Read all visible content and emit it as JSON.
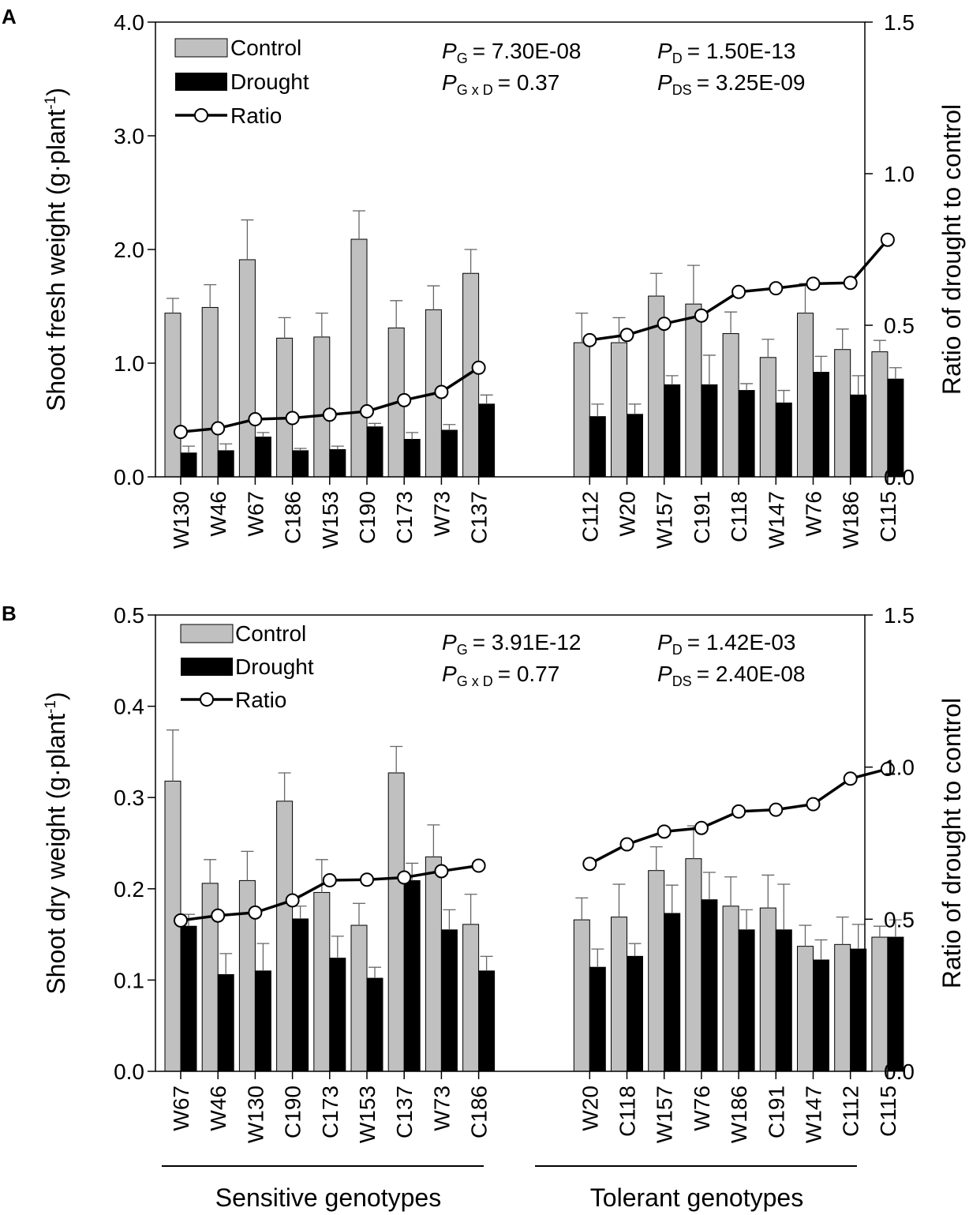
{
  "colors": {
    "control": "#c0c0c0",
    "drought": "#000000",
    "ratio_line": "#000000",
    "ratio_marker": "#ffffff",
    "error_bar": "#666666"
  },
  "group_labels": {
    "sensitive": "Sensitive genotypes",
    "tolerant": "Tolerant genotypes"
  },
  "chart_data": [
    {
      "panel_label": "A",
      "type": "bar",
      "ylabel_main": "Shoot fresh weight (g·plant",
      "ylabel_sup": "-1",
      "ylabel_close": ")",
      "y2label": "Ratio of drought to control",
      "ylim": [
        0,
        4.0
      ],
      "yticks": [
        "0.0",
        "1.0",
        "2.0",
        "3.0",
        "4.0"
      ],
      "y2lim": [
        0,
        1.5
      ],
      "y2ticks": [
        "0.0",
        "0.5",
        "1.0",
        "1.5"
      ],
      "legend": [
        "Control",
        "Drought",
        "Ratio"
      ],
      "stats": {
        "pg_value": "= 7.30E-08",
        "pgd_value": "= 0.37",
        "pd_value": "= 1.50E-13",
        "pds_value": "= 3.25E-09"
      },
      "sensitive_categories": [
        "W130",
        "W46",
        "W67",
        "C186",
        "W153",
        "C190",
        "C173",
        "W73",
        "C137"
      ],
      "tolerant_categories": [
        "C112",
        "W20",
        "W157",
        "C191",
        "C118",
        "W147",
        "W76",
        "W186",
        "C115"
      ],
      "series": [
        {
          "name": "Control",
          "values": [
            1.44,
            1.49,
            1.91,
            1.22,
            1.23,
            2.09,
            1.31,
            1.47,
            1.79,
            1.18,
            1.18,
            1.59,
            1.52,
            1.26,
            1.05,
            1.44,
            1.12,
            1.1
          ],
          "errors": [
            0.13,
            0.2,
            0.35,
            0.18,
            0.21,
            0.25,
            0.24,
            0.21,
            0.21,
            0.26,
            0.22,
            0.2,
            0.34,
            0.19,
            0.16,
            0.26,
            0.18,
            0.1
          ]
        },
        {
          "name": "Drought",
          "values": [
            0.21,
            0.23,
            0.35,
            0.23,
            0.24,
            0.44,
            0.33,
            0.41,
            0.64,
            0.53,
            0.55,
            0.81,
            0.81,
            0.76,
            0.65,
            0.92,
            0.72,
            0.86
          ],
          "errors": [
            0.06,
            0.06,
            0.04,
            0.02,
            0.03,
            0.03,
            0.06,
            0.05,
            0.08,
            0.11,
            0.09,
            0.08,
            0.26,
            0.06,
            0.11,
            0.14,
            0.17,
            0.1
          ]
        },
        {
          "name": "Ratio",
          "values": [
            0.148,
            0.16,
            0.19,
            0.194,
            0.205,
            0.216,
            0.253,
            0.28,
            0.36,
            0.451,
            0.468,
            0.505,
            0.532,
            0.61,
            0.622,
            0.637,
            0.64,
            0.782
          ]
        }
      ]
    },
    {
      "panel_label": "B",
      "type": "bar",
      "ylabel_main": "Shoot dry weight (g·plant",
      "ylabel_sup": "-1",
      "ylabel_close": ")",
      "y2label": "Ratio of drought to control",
      "ylim": [
        0,
        0.5
      ],
      "yticks": [
        "0.0",
        "0.1",
        "0.2",
        "0.3",
        "0.4",
        "0.5"
      ],
      "y2lim": [
        0,
        1.5
      ],
      "y2ticks": [
        "0.0",
        "0.5",
        "1.0",
        "1.5"
      ],
      "legend": [
        "Control",
        "Drought",
        "Ratio"
      ],
      "stats": {
        "pg_value": "= 3.91E-12",
        "pgd_value": "= 0.77",
        "pd_value": "= 1.42E-03",
        "pds_value": "= 2.40E-08"
      },
      "sensitive_categories": [
        "W67",
        "W46",
        "W130",
        "C190",
        "C173",
        "W153",
        "C137",
        "W73",
        "C186"
      ],
      "tolerant_categories": [
        "W20",
        "C118",
        "W157",
        "W76",
        "W186",
        "C191",
        "W147",
        "C112",
        "C115"
      ],
      "series": [
        {
          "name": "Control",
          "values": [
            0.318,
            0.206,
            0.209,
            0.296,
            0.196,
            0.16,
            0.327,
            0.235,
            0.161,
            0.166,
            0.169,
            0.22,
            0.233,
            0.181,
            0.179,
            0.137,
            0.139,
            0.147
          ],
          "errors": [
            0.056,
            0.026,
            0.032,
            0.031,
            0.036,
            0.024,
            0.029,
            0.035,
            0.033,
            0.024,
            0.036,
            0.026,
            0.036,
            0.032,
            0.036,
            0.023,
            0.03,
            0.012
          ]
        },
        {
          "name": "Drought",
          "values": [
            0.159,
            0.106,
            0.11,
            0.167,
            0.124,
            0.102,
            0.209,
            0.155,
            0.11,
            0.114,
            0.126,
            0.173,
            0.188,
            0.155,
            0.155,
            0.122,
            0.134,
            0.147
          ],
          "errors": [
            0.013,
            0.023,
            0.03,
            0.014,
            0.024,
            0.012,
            0.019,
            0.022,
            0.016,
            0.02,
            0.014,
            0.031,
            0.03,
            0.022,
            0.05,
            0.022,
            0.027,
            0.019
          ]
        },
        {
          "name": "Ratio",
          "values": [
            0.496,
            0.512,
            0.522,
            0.562,
            0.628,
            0.63,
            0.637,
            0.658,
            0.676,
            0.682,
            0.746,
            0.788,
            0.8,
            0.854,
            0.86,
            0.878,
            0.962,
            0.994
          ]
        }
      ]
    }
  ]
}
